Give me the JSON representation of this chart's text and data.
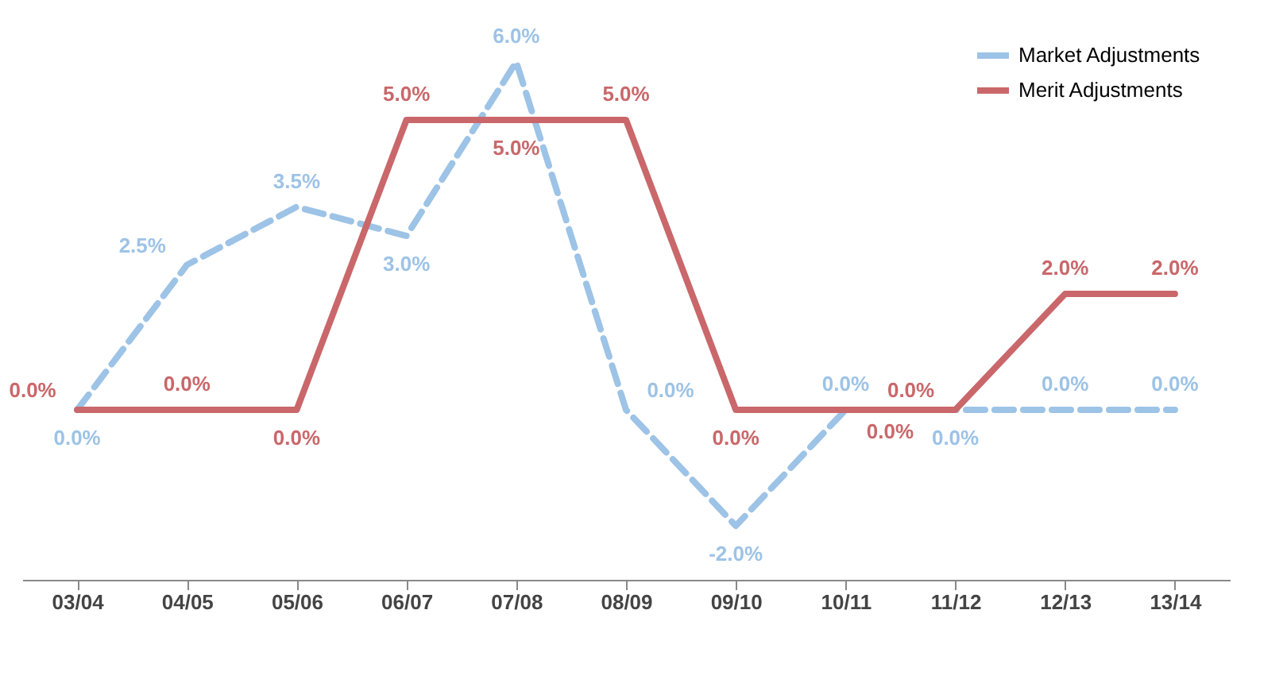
{
  "chart_data": {
    "type": "line",
    "categories": [
      "03/04",
      "04/05",
      "05/06",
      "06/07",
      "07/08",
      "08/09",
      "09/10",
      "10/11",
      "11/12",
      "12/13",
      "13/14"
    ],
    "series": [
      {
        "name": "Market Adjustments",
        "color": "#9dc3e6",
        "line_style": "dashed",
        "values": [
          0.0,
          2.5,
          3.5,
          3.0,
          6.0,
          0.0,
          -2.0,
          0.0,
          0.0,
          0.0,
          0.0
        ],
        "value_labels": [
          "0.0%",
          "2.5%",
          "3.5%",
          "3.0%",
          "6.0%",
          "0.0%",
          "-2.0%",
          "0.0%",
          "0.0%",
          "0.0%",
          "0.0%"
        ]
      },
      {
        "name": "Merit Adjustments",
        "color": "#c9676a",
        "line_style": "solid",
        "values": [
          0.0,
          0.0,
          0.0,
          5.0,
          5.0,
          5.0,
          0.0,
          0.0,
          0.0,
          2.0,
          2.0
        ],
        "value_labels": [
          "0.0%",
          "0.0%",
          "0.0%",
          "5.0%",
          "5.0%",
          "5.0%",
          "0.0%",
          "0.0%",
          "0.0%",
          "2.0%",
          "2.0%"
        ]
      }
    ],
    "legend": "top right",
    "grid": false,
    "marker": "none",
    "tick_labels": "x"
  }
}
